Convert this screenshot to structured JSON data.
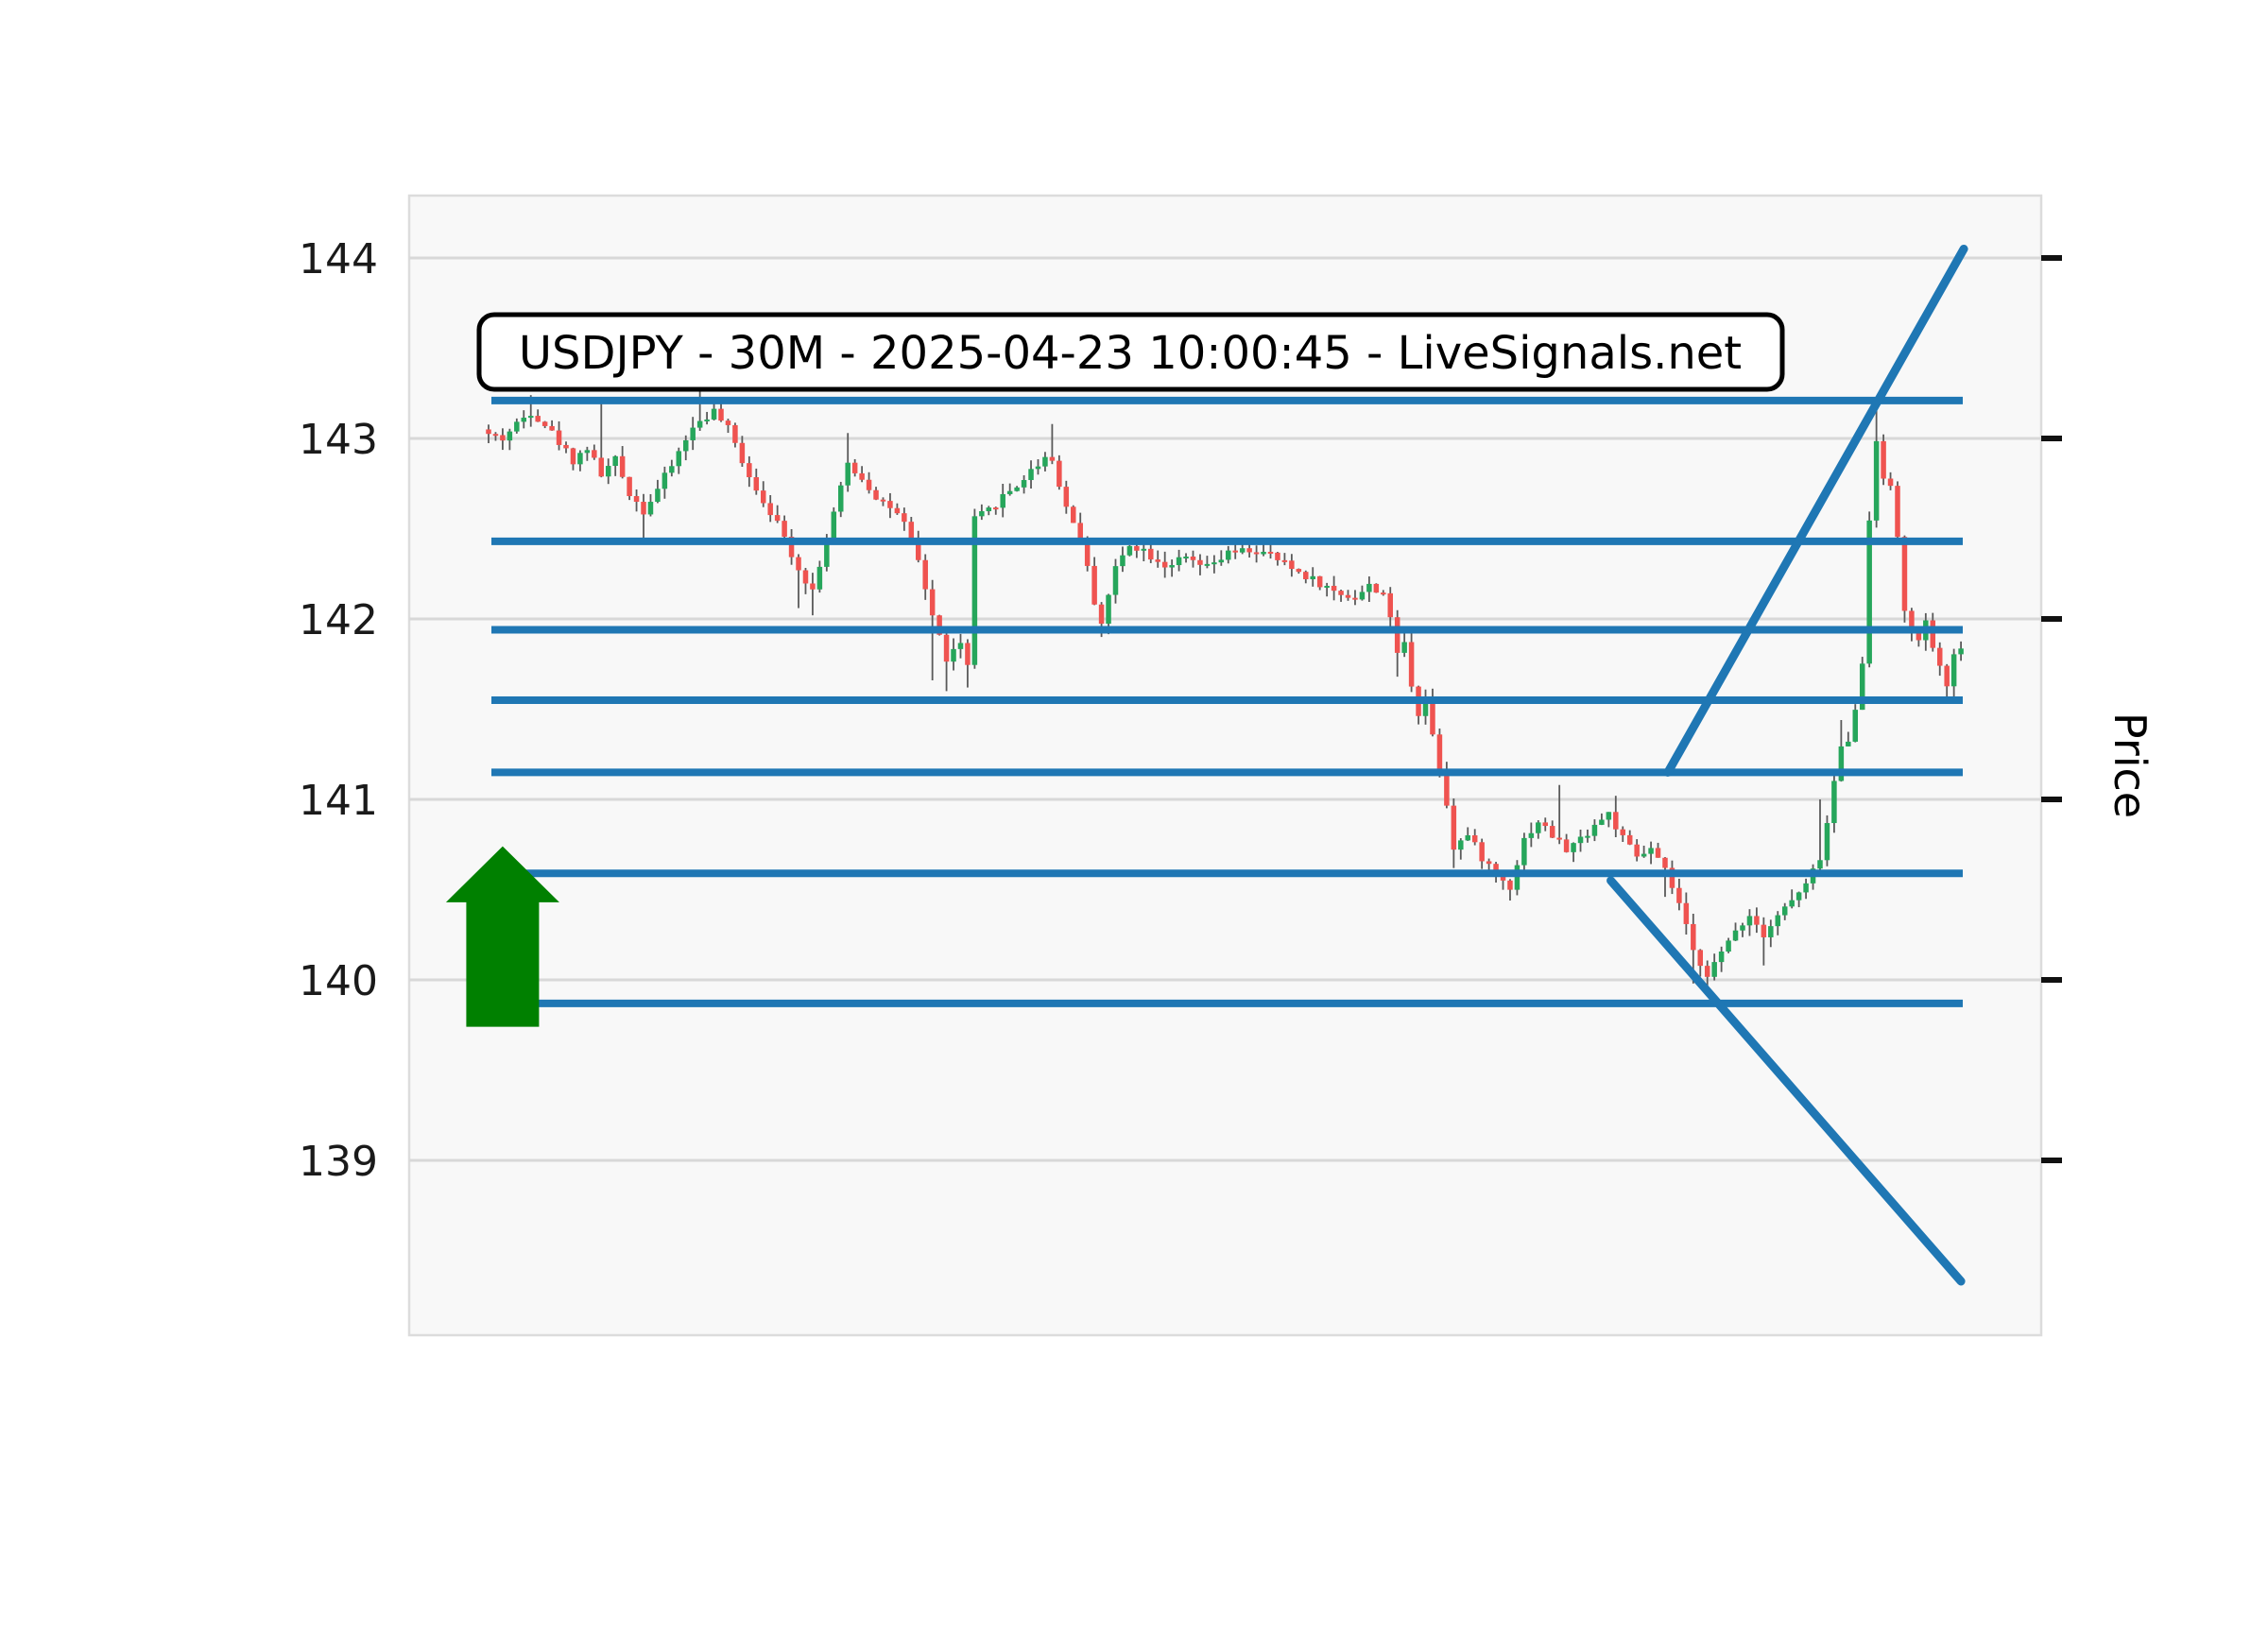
{
  "title": {
    "text": "USDJPY - 30M - 2025-04-23 10:00:45 - LiveSignals.net"
  },
  "y_axis": {
    "ticks": [
      144,
      143,
      142,
      141,
      140,
      139
    ],
    "right_label": "Price"
  },
  "chart_data": {
    "type": "candlestick",
    "symbol": "USDJPY",
    "timeframe": "30M",
    "timestamp": "2025-04-23 10:00:45",
    "source": "LiveSignals.net",
    "title": "USDJPY - 30M - 2025-04-23 10:00:45 - LiveSignals.net",
    "ylabel": "Price",
    "ylim": [
      138.03,
      144.35
    ],
    "y_ticks": [
      139,
      140,
      141,
      142,
      143,
      144
    ],
    "grid": true,
    "candle_count": 210,
    "close_waypoints": [
      [
        0,
        143.02
      ],
      [
        2,
        143.0
      ],
      [
        4,
        143.08
      ],
      [
        6,
        143.15
      ],
      [
        8,
        143.08
      ],
      [
        10,
        142.98
      ],
      [
        12,
        142.88
      ],
      [
        14,
        142.95
      ],
      [
        16,
        142.8
      ],
      [
        18,
        142.88
      ],
      [
        20,
        142.7
      ],
      [
        22,
        142.6
      ],
      [
        24,
        142.72
      ],
      [
        26,
        142.85
      ],
      [
        28,
        143.0
      ],
      [
        30,
        143.1
      ],
      [
        32,
        143.15
      ],
      [
        34,
        143.05
      ],
      [
        36,
        142.88
      ],
      [
        38,
        142.72
      ],
      [
        40,
        142.6
      ],
      [
        42,
        142.45
      ],
      [
        44,
        142.28
      ],
      [
        46,
        142.16
      ],
      [
        48,
        142.45
      ],
      [
        50,
        142.72
      ],
      [
        51,
        142.86
      ],
      [
        53,
        142.78
      ],
      [
        55,
        142.68
      ],
      [
        57,
        142.62
      ],
      [
        59,
        142.52
      ],
      [
        61,
        142.32
      ],
      [
        63,
        142.02
      ],
      [
        65,
        141.78
      ],
      [
        67,
        141.86
      ],
      [
        68,
        141.74
      ],
      [
        69,
        142.55
      ],
      [
        71,
        142.6
      ],
      [
        73,
        142.68
      ],
      [
        75,
        142.74
      ],
      [
        77,
        142.82
      ],
      [
        79,
        142.9
      ],
      [
        80,
        142.88
      ],
      [
        82,
        142.62
      ],
      [
        84,
        142.45
      ],
      [
        86,
        142.1
      ],
      [
        87,
        141.98
      ],
      [
        89,
        142.28
      ],
      [
        91,
        142.42
      ],
      [
        93,
        142.38
      ],
      [
        96,
        142.3
      ],
      [
        99,
        142.33
      ],
      [
        102,
        142.28
      ],
      [
        105,
        142.36
      ],
      [
        108,
        142.38
      ],
      [
        111,
        142.35
      ],
      [
        114,
        142.28
      ],
      [
        117,
        142.22
      ],
      [
        120,
        142.15
      ],
      [
        123,
        142.12
      ],
      [
        125,
        142.18
      ],
      [
        127,
        142.15
      ],
      [
        129,
        141.82
      ],
      [
        130,
        141.86
      ],
      [
        131,
        141.64
      ],
      [
        132,
        141.48
      ],
      [
        133,
        141.56
      ],
      [
        134,
        141.36
      ],
      [
        135,
        141.18
      ],
      [
        136,
        140.98
      ],
      [
        137,
        140.74
      ],
      [
        139,
        140.8
      ],
      [
        141,
        140.68
      ],
      [
        143,
        140.58
      ],
      [
        145,
        140.52
      ],
      [
        147,
        140.78
      ],
      [
        149,
        140.88
      ],
      [
        151,
        140.8
      ],
      [
        153,
        140.72
      ],
      [
        155,
        140.78
      ],
      [
        157,
        140.86
      ],
      [
        159,
        140.92
      ],
      [
        161,
        140.78
      ],
      [
        163,
        140.68
      ],
      [
        165,
        140.72
      ],
      [
        167,
        140.6
      ],
      [
        169,
        140.42
      ],
      [
        171,
        140.15
      ],
      [
        173,
        140.04
      ],
      [
        175,
        140.14
      ],
      [
        177,
        140.28
      ],
      [
        179,
        140.36
      ],
      [
        181,
        140.26
      ],
      [
        183,
        140.36
      ],
      [
        185,
        140.44
      ],
      [
        187,
        140.52
      ],
      [
        189,
        140.68
      ],
      [
        190,
        140.86
      ],
      [
        191,
        141.1
      ],
      [
        192,
        141.28
      ],
      [
        193,
        141.34
      ],
      [
        194,
        141.52
      ],
      [
        195,
        141.74
      ],
      [
        196,
        142.55
      ],
      [
        197,
        143.0
      ],
      [
        198,
        142.8
      ],
      [
        199,
        142.72
      ],
      [
        200,
        142.45
      ],
      [
        201,
        142.06
      ],
      [
        202,
        141.92
      ],
      [
        203,
        141.86
      ],
      [
        204,
        142.0
      ],
      [
        205,
        141.82
      ],
      [
        206,
        141.72
      ],
      [
        207,
        141.64
      ],
      [
        208,
        141.78
      ],
      [
        209,
        141.86
      ]
    ],
    "wick_overrides": {
      "6": {
        "high": 143.24
      },
      "16": {
        "high": 143.2
      },
      "22": {
        "low": 142.42
      },
      "30": {
        "high": 143.26
      },
      "32": {
        "high": 143.23
      },
      "44": {
        "low": 142.06
      },
      "46": {
        "low": 142.02
      },
      "51": {
        "high": 143.03
      },
      "63": {
        "low": 141.66
      },
      "65": {
        "low": 141.6
      },
      "68": {
        "low": 141.62
      },
      "80": {
        "high": 143.08
      },
      "87": {
        "low": 141.9
      },
      "111": {
        "high": 142.44
      },
      "129": {
        "low": 141.68
      },
      "137": {
        "low": 140.62
      },
      "145": {
        "low": 140.44
      },
      "152": {
        "high": 141.08
      },
      "160": {
        "high": 141.02
      },
      "167": {
        "low": 140.46
      },
      "171": {
        "low": 139.98
      },
      "173": {
        "low": 139.95
      },
      "181": {
        "low": 140.08
      },
      "189": {
        "high": 141.0
      },
      "192": {
        "high": 141.44
      },
      "197": {
        "high": 143.17
      },
      "201": {
        "low": 141.98
      },
      "207": {
        "low": 141.56
      }
    },
    "support_resistance_levels": [
      143.21,
      142.43,
      141.94,
      141.55,
      141.15,
      140.59,
      139.87
    ],
    "trendlines": [
      {
        "name": "ascending",
        "points": [
          [
            167.4,
            141.15
          ],
          [
            209.4,
            144.05
          ]
        ]
      },
      {
        "name": "descending",
        "points": [
          [
            159.3,
            140.55
          ],
          [
            209.0,
            138.33
          ]
        ]
      }
    ],
    "arrow_annotation": {
      "direction": "up",
      "x_index": 2,
      "price_tip": 140.74,
      "price_head_base": 140.43,
      "price_bottom": 139.74
    },
    "colors": {
      "candle_up": "#26a65b",
      "candle_down": "#ef5350",
      "wick": "#5a5a5a",
      "level_line": "#1f77b4",
      "trend_line": "#1f77b4",
      "arrow": "#008000",
      "grid": "#d8d8d8",
      "plot_bg": "#f8f8f8",
      "axis_text": "#1a1a1a"
    }
  }
}
